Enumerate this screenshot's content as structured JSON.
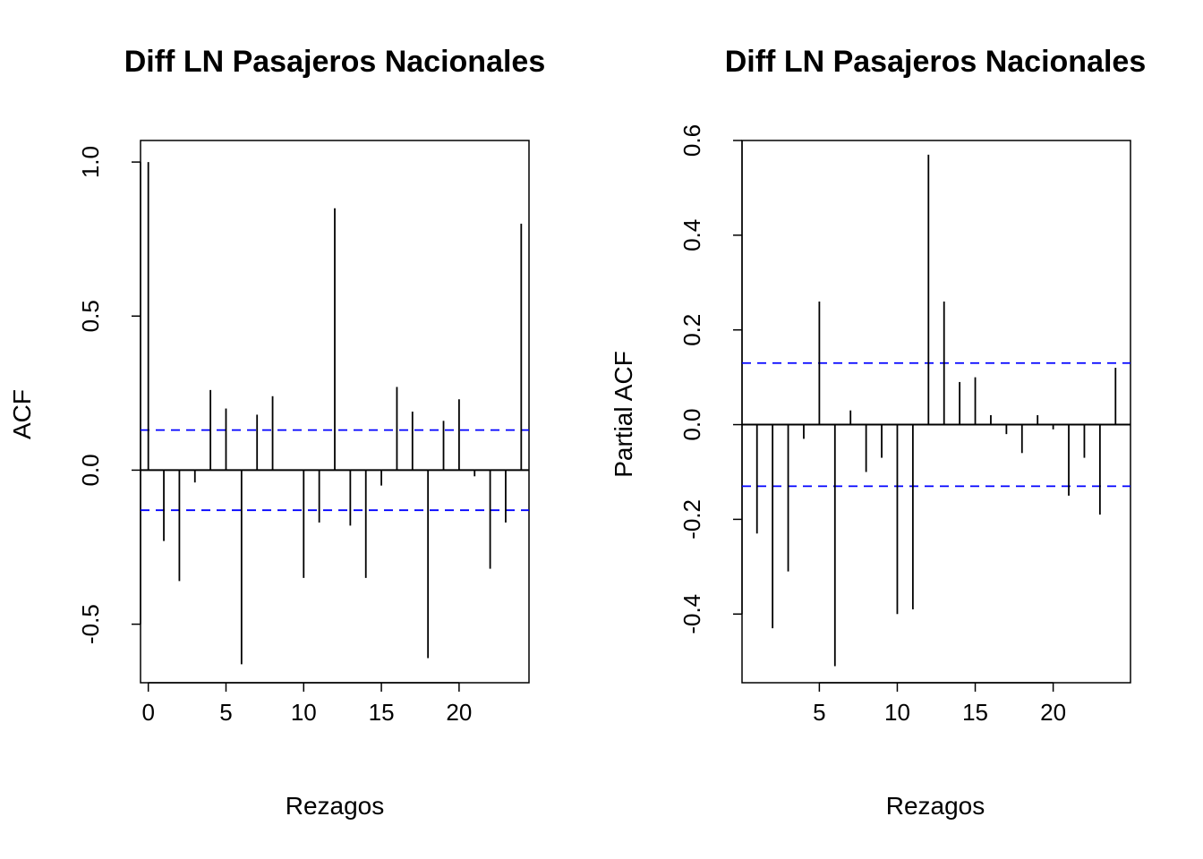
{
  "chart_data": [
    {
      "type": "bar",
      "title": "Diff LN Pasajeros Nacionales",
      "xlabel": "Rezagos",
      "ylabel": "ACF",
      "x_ticks": [
        "0",
        "5",
        "10",
        "15",
        "20"
      ],
      "y_ticks": [
        "-0.5",
        "0.0",
        "0.5",
        "1.0"
      ],
      "xlim": [
        -0.5,
        24.5
      ],
      "ylim": [
        -0.69,
        1.07
      ],
      "confidence_band": 0.13,
      "line_color": "#000000",
      "band_color": "#0000ff",
      "lags": [
        0,
        1,
        2,
        3,
        4,
        5,
        6,
        7,
        8,
        9,
        10,
        11,
        12,
        13,
        14,
        15,
        16,
        17,
        18,
        19,
        20,
        21,
        22,
        23,
        24
      ],
      "values": [
        1.0,
        -0.23,
        -0.36,
        -0.04,
        0.26,
        0.2,
        -0.63,
        0.18,
        0.24,
        0.0,
        -0.35,
        -0.17,
        0.85,
        -0.18,
        -0.35,
        -0.05,
        0.27,
        0.19,
        -0.61,
        0.16,
        0.23,
        -0.02,
        -0.32,
        -0.17,
        0.8
      ]
    },
    {
      "type": "bar",
      "title": "Diff LN Pasajeros Nacionales",
      "xlabel": "Rezagos",
      "ylabel": "Partial ACF",
      "x_ticks": [
        "5",
        "10",
        "15",
        "20"
      ],
      "y_ticks": [
        "-0.4",
        "-0.2",
        "0.0",
        "0.2",
        "0.4",
        "0.6"
      ],
      "xlim": [
        0.04,
        24.96
      ],
      "ylim": [
        -0.545,
        0.6
      ],
      "confidence_band": 0.13,
      "line_color": "#000000",
      "band_color": "#0000ff",
      "lags": [
        1,
        2,
        3,
        4,
        5,
        6,
        7,
        8,
        9,
        10,
        11,
        12,
        13,
        14,
        15,
        16,
        17,
        18,
        19,
        20,
        21,
        22,
        23,
        24
      ],
      "values": [
        -0.23,
        -0.43,
        -0.31,
        -0.03,
        0.26,
        -0.51,
        0.03,
        -0.1,
        -0.07,
        -0.4,
        -0.39,
        0.57,
        0.26,
        0.09,
        0.1,
        0.02,
        -0.02,
        -0.06,
        0.02,
        -0.01,
        -0.15,
        -0.07,
        -0.19,
        0.12
      ]
    }
  ]
}
